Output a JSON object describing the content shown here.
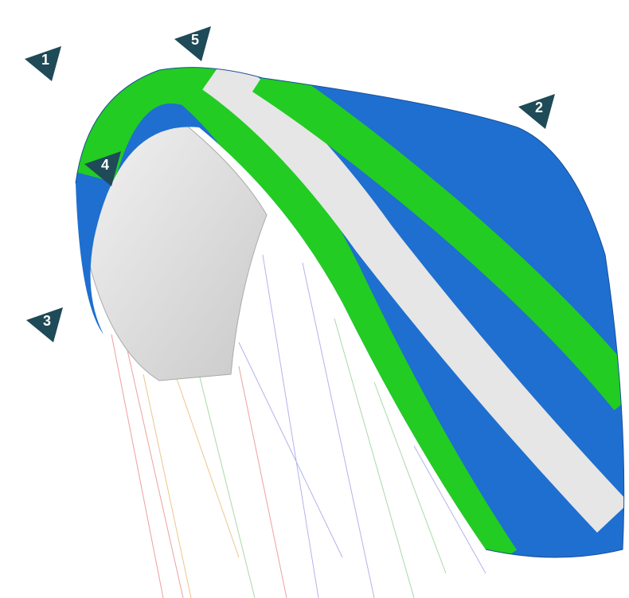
{
  "markers": [
    {
      "label": "1"
    },
    {
      "label": "2"
    },
    {
      "label": "3"
    },
    {
      "label": "4"
    },
    {
      "label": "5"
    }
  ]
}
